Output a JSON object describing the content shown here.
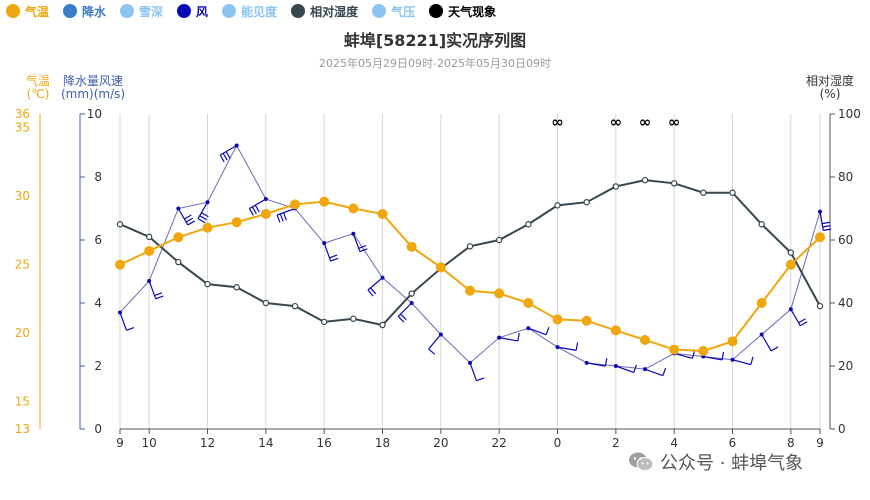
{
  "legend": [
    {
      "label": "气温",
      "color": "#f0a70e"
    },
    {
      "label": "降水",
      "color": "#3a7bc8"
    },
    {
      "label": "雪深",
      "color": "#8cc4f2"
    },
    {
      "label": "风",
      "color": "#0a0ab5"
    },
    {
      "label": "能见度",
      "color": "#8cc4f2"
    },
    {
      "label": "相对湿度",
      "color": "#37474f"
    },
    {
      "label": "气压",
      "color": "#8cc4f2"
    },
    {
      "label": "天气现象",
      "color": "#000000"
    }
  ],
  "chart_data": {
    "type": "line",
    "title": "蚌埠[58221]实况序列图",
    "subtitle": "2025年05月29日09时-2025年05月30日09时",
    "x": [
      "9",
      "10",
      "11",
      "12",
      "13",
      "14",
      "15",
      "16",
      "17",
      "18",
      "19",
      "20",
      "21",
      "22",
      "23",
      "0",
      "1",
      "2",
      "3",
      "4",
      "5",
      "6",
      "7",
      "8",
      "9"
    ],
    "x_tick_labels": [
      "9",
      "10",
      "12",
      "14",
      "16",
      "18",
      "20",
      "22",
      "0",
      "2",
      "4",
      "6",
      "8",
      "9"
    ],
    "axes": {
      "temperature": {
        "title": "气温\n(℃)",
        "ticks": [
          "13",
          "15",
          "20",
          "25",
          "30",
          "35",
          "36"
        ],
        "range": [
          13,
          36
        ],
        "color": "#f0a70e",
        "position": "left-outer"
      },
      "precip_wind": {
        "title": "降水量风速\n(mm)(m/s)",
        "ticks": [
          "0",
          "2",
          "4",
          "6",
          "8",
          "10"
        ],
        "range": [
          0,
          10
        ],
        "color": "#3a5fa8",
        "position": "left-inner"
      },
      "humidity": {
        "title": "相对湿度\n(%)",
        "ticks": [
          "0",
          "20",
          "40",
          "60",
          "80",
          "100"
        ],
        "range": [
          0,
          100
        ],
        "color": "#333333",
        "position": "right"
      }
    },
    "grid": "vertical",
    "series": [
      {
        "name": "气温",
        "axis": "temperature",
        "color": "#f0a70e",
        "values": [
          25.0,
          26.0,
          27.0,
          27.7,
          28.1,
          28.7,
          29.4,
          29.6,
          29.1,
          28.7,
          26.3,
          24.8,
          23.1,
          22.9,
          22.2,
          21.0,
          20.9,
          20.2,
          19.5,
          18.8,
          18.7,
          19.4,
          22.2,
          25.0,
          27.0
        ]
      },
      {
        "name": "相对湿度",
        "axis": "humidity",
        "color": "#37474f",
        "values": [
          65,
          61,
          53,
          46,
          45,
          40,
          39,
          34,
          35,
          33,
          43,
          51,
          58,
          60,
          65,
          71,
          72,
          77,
          79,
          78,
          75,
          75,
          65,
          56,
          39
        ]
      },
      {
        "name": "风",
        "axis": "precip_wind",
        "color": "#0a0ab5",
        "values": [
          3.7,
          4.7,
          7.0,
          7.2,
          9.0,
          7.3,
          7.0,
          5.9,
          6.2,
          4.8,
          4.0,
          3.0,
          2.1,
          2.9,
          3.2,
          2.6,
          2.1,
          2.0,
          1.9,
          2.4,
          2.3,
          2.2,
          3.0,
          3.8,
          6.9
        ],
        "barb_directions_deg": [
          20,
          20,
          30,
          330,
          300,
          300,
          290,
          20,
          20,
          310,
          315,
          320,
          20,
          80,
          70,
          80,
          80,
          70,
          70,
          75,
          80,
          75,
          30,
          30,
          10
        ]
      },
      {
        "name": "天气现象",
        "symbol": "∞",
        "x": [
          "0",
          "2",
          "3",
          "4"
        ]
      }
    ]
  },
  "watermark": {
    "label": "公众号 · 蚌埠气象"
  }
}
